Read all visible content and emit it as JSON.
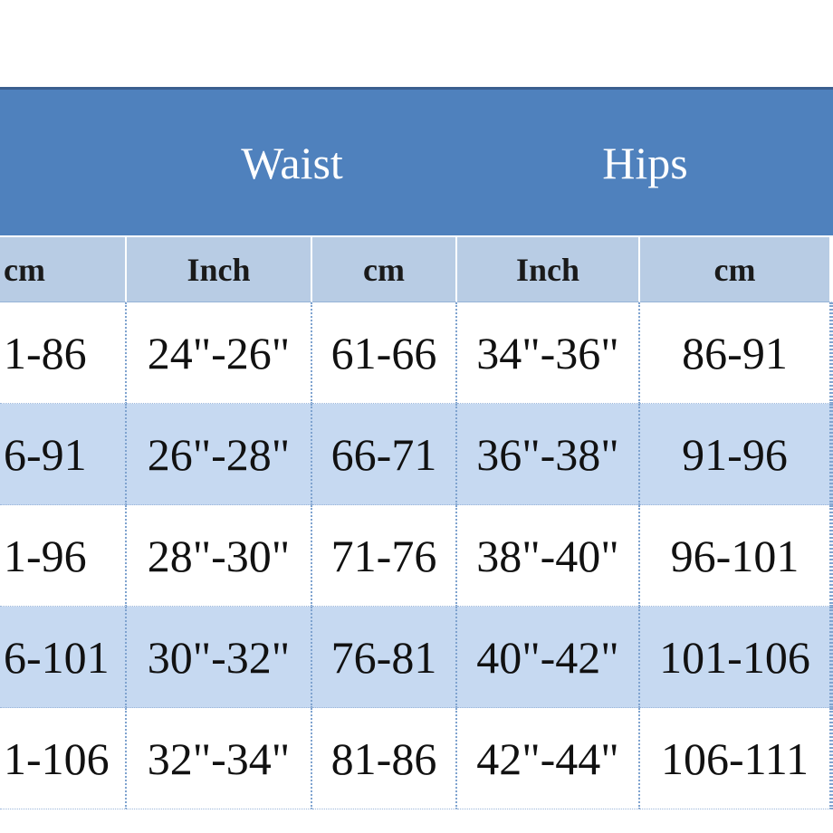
{
  "table": {
    "header": [
      "Waist",
      "Hips"
    ],
    "subheader": [
      "cm",
      "Inch",
      "cm",
      "Inch",
      "cm"
    ],
    "rows": [
      [
        "1-86",
        "24\"-26\"",
        "61-66",
        "34\"-36\"",
        "86-91"
      ],
      [
        "6-91",
        "26\"-28\"",
        "66-71",
        "36\"-38\"",
        "91-96"
      ],
      [
        "1-96",
        "28\"-30\"",
        "71-76",
        "38\"-40\"",
        "96-101"
      ],
      [
        "6-101",
        "30\"-32\"",
        "76-81",
        "40\"-42\"",
        "101-106"
      ],
      [
        "1-106",
        "32\"-34\"",
        "81-86",
        "42\"-44\"",
        "106-111"
      ]
    ]
  }
}
